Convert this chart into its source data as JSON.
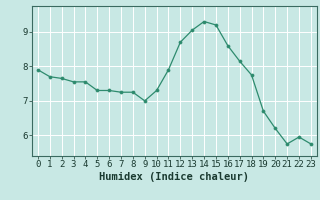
{
  "x": [
    0,
    1,
    2,
    3,
    4,
    5,
    6,
    7,
    8,
    9,
    10,
    11,
    12,
    13,
    14,
    15,
    16,
    17,
    18,
    19,
    20,
    21,
    22,
    23
  ],
  "y": [
    7.9,
    7.7,
    7.65,
    7.55,
    7.55,
    7.3,
    7.3,
    7.25,
    7.25,
    7.0,
    7.3,
    7.9,
    8.7,
    9.05,
    9.3,
    9.2,
    8.6,
    8.15,
    7.75,
    6.7,
    6.2,
    5.75,
    5.95,
    5.75
  ],
  "line_color": "#2e8b6e",
  "marker": "o",
  "marker_size": 2.2,
  "bg_color": "#c8e8e4",
  "grid_color": "#ffffff",
  "grid_minor_color": "#e0f0ee",
  "axis_color": "#3a6a60",
  "xlabel": "Humidex (Indice chaleur)",
  "xlabel_fontsize": 7.5,
  "tick_fontsize": 6.5,
  "ylim": [
    5.4,
    9.75
  ],
  "xlim": [
    -0.5,
    23.5
  ],
  "yticks": [
    6,
    7,
    8,
    9
  ],
  "xticks": [
    0,
    1,
    2,
    3,
    4,
    5,
    6,
    7,
    8,
    9,
    10,
    11,
    12,
    13,
    14,
    15,
    16,
    17,
    18,
    19,
    20,
    21,
    22,
    23
  ]
}
